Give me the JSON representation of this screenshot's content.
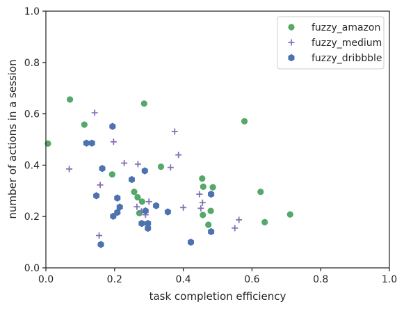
{
  "chart_data": {
    "type": "scatter",
    "xlabel": "task completion efficiency",
    "ylabel": "number of actions in a session",
    "xlim": [
      0,
      1
    ],
    "ylim": [
      0,
      1
    ],
    "x_ticks": [
      "0.0",
      "0.2",
      "0.4",
      "0.6",
      "0.8",
      "1.0"
    ],
    "y_ticks": [
      "0.0",
      "0.2",
      "0.4",
      "0.6",
      "0.8",
      "1.0"
    ],
    "grid": false,
    "legend_position": "top-right",
    "series": [
      {
        "name": "fuzzy_amazon",
        "marker": "circle",
        "color": "#55a868",
        "points": [
          [
            0.006,
            0.484
          ],
          [
            0.07,
            0.656
          ],
          [
            0.112,
            0.558
          ],
          [
            0.193,
            0.364
          ],
          [
            0.286,
            0.64
          ],
          [
            0.257,
            0.296
          ],
          [
            0.267,
            0.275
          ],
          [
            0.28,
            0.258
          ],
          [
            0.272,
            0.213
          ],
          [
            0.335,
            0.394
          ],
          [
            0.455,
            0.348
          ],
          [
            0.458,
            0.316
          ],
          [
            0.486,
            0.314
          ],
          [
            0.48,
            0.222
          ],
          [
            0.457,
            0.206
          ],
          [
            0.473,
            0.168
          ],
          [
            0.578,
            0.571
          ],
          [
            0.625,
            0.296
          ],
          [
            0.637,
            0.178
          ],
          [
            0.711,
            0.208
          ]
        ]
      },
      {
        "name": "fuzzy_medium",
        "marker": "plus",
        "color": "#8172b3",
        "points": [
          [
            0.068,
            0.385
          ],
          [
            0.142,
            0.604
          ],
          [
            0.158,
            0.323
          ],
          [
            0.155,
            0.126
          ],
          [
            0.197,
            0.491
          ],
          [
            0.228,
            0.408
          ],
          [
            0.268,
            0.404
          ],
          [
            0.265,
            0.238
          ],
          [
            0.278,
            0.22
          ],
          [
            0.29,
            0.207
          ],
          [
            0.3,
            0.258
          ],
          [
            0.363,
            0.391
          ],
          [
            0.375,
            0.531
          ],
          [
            0.386,
            0.44
          ],
          [
            0.4,
            0.235
          ],
          [
            0.447,
            0.287
          ],
          [
            0.451,
            0.232
          ],
          [
            0.456,
            0.254
          ],
          [
            0.55,
            0.155
          ],
          [
            0.562,
            0.187
          ]
        ]
      },
      {
        "name": "fuzzy_dribbble",
        "marker": "hexagon",
        "color": "#4c72b0",
        "points": [
          [
            0.118,
            0.486
          ],
          [
            0.134,
            0.486
          ],
          [
            0.164,
            0.387
          ],
          [
            0.147,
            0.281
          ],
          [
            0.16,
            0.091
          ],
          [
            0.194,
            0.551
          ],
          [
            0.196,
            0.201
          ],
          [
            0.208,
            0.272
          ],
          [
            0.215,
            0.237
          ],
          [
            0.208,
            0.216
          ],
          [
            0.25,
            0.344
          ],
          [
            0.288,
            0.378
          ],
          [
            0.279,
            0.173
          ],
          [
            0.29,
            0.222
          ],
          [
            0.297,
            0.154
          ],
          [
            0.297,
            0.173
          ],
          [
            0.321,
            0.242
          ],
          [
            0.355,
            0.218
          ],
          [
            0.422,
            0.1
          ],
          [
            0.481,
            0.287
          ],
          [
            0.481,
            0.141
          ]
        ]
      }
    ]
  }
}
